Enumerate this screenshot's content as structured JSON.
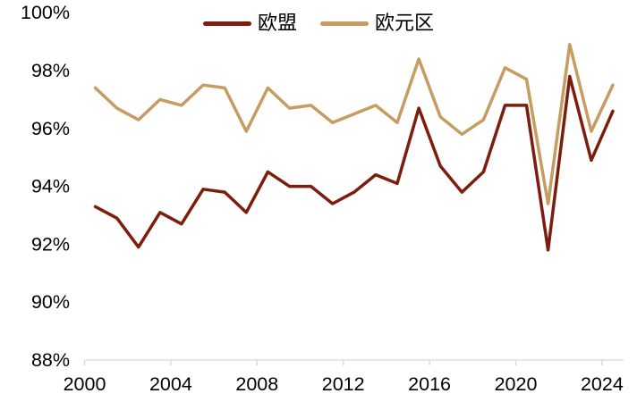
{
  "chart_data": {
    "type": "line",
    "x": [
      2000,
      2001,
      2002,
      2003,
      2004,
      2005,
      2006,
      2007,
      2008,
      2009,
      2010,
      2011,
      2012,
      2013,
      2014,
      2015,
      2016,
      2017,
      2018,
      2019,
      2020,
      2021,
      2022,
      2023,
      2024
    ],
    "series": [
      {
        "key": "eu",
        "name": "欧盟",
        "color": "#7C1E0E",
        "values": [
          93.3,
          92.9,
          91.9,
          93.1,
          92.7,
          93.9,
          93.8,
          93.1,
          94.5,
          94.0,
          94.0,
          93.4,
          93.8,
          94.4,
          94.1,
          96.7,
          94.7,
          93.8,
          94.5,
          96.8,
          96.8,
          91.8,
          97.8,
          94.9,
          96.6
        ]
      },
      {
        "key": "eurozone",
        "name": "欧元区",
        "color": "#C69C62",
        "values": [
          97.4,
          96.7,
          96.3,
          97.0,
          96.8,
          97.5,
          97.4,
          95.9,
          97.4,
          96.7,
          96.8,
          96.2,
          96.5,
          96.8,
          96.2,
          98.4,
          96.4,
          95.8,
          96.3,
          98.1,
          97.7,
          93.4,
          98.9,
          95.9,
          97.5
        ]
      }
    ],
    "title": "",
    "xlabel": "",
    "ylabel": "",
    "ylim": [
      88,
      100
    ],
    "ytick_labels": [
      "88%",
      "90%",
      "92%",
      "94%",
      "96%",
      "98%",
      "100%"
    ],
    "ytick_values": [
      88,
      90,
      92,
      94,
      96,
      98,
      100
    ],
    "xtick_labels": [
      "2000",
      "2004",
      "2008",
      "2012",
      "2016",
      "2020",
      "2024"
    ],
    "xtick_values": [
      2000,
      2004,
      2008,
      2012,
      2016,
      2020,
      2024
    ],
    "grid": false,
    "legend_position": "top-center",
    "axis_color": "#d6d6d6",
    "text_color": "#000000",
    "background_color": "#ffffff"
  }
}
